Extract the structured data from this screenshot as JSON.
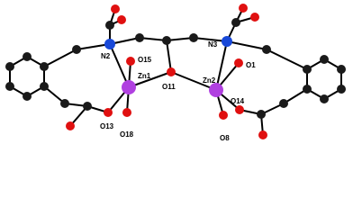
{
  "nodes": [
    {
      "label": "N2"
    },
    {
      "label": "O15"
    },
    {
      "label": "Zn1"
    },
    {
      "label": "O11"
    },
    {
      "label": "Zn2"
    },
    {
      "label": "N3"
    },
    {
      "label": "O1"
    },
    {
      "label": "O14"
    },
    {
      "label": "O13"
    },
    {
      "label": "O18"
    },
    {
      "label": "O8"
    }
  ]
}
